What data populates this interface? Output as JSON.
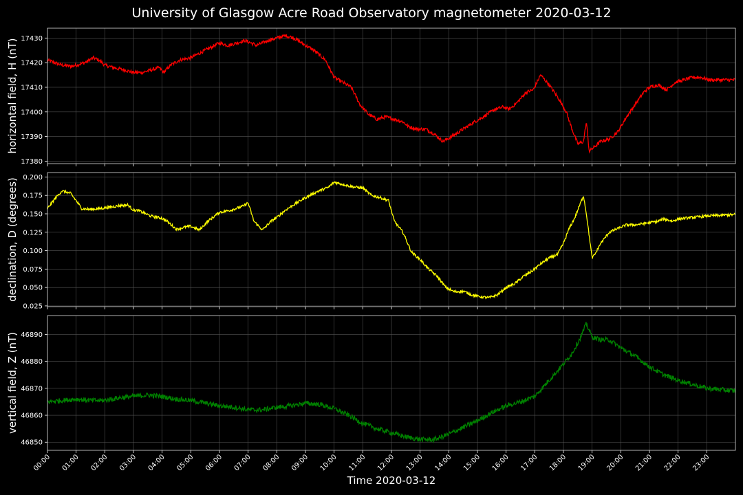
{
  "title": "University of Glasgow Acre Road Observatory magnetometer 2020-03-12",
  "xlabel": "Time 2020-03-12",
  "chart_data": [
    {
      "type": "line",
      "ylabel": "horizontal field, H (nT)",
      "color": "#ff0000",
      "ylim": [
        17379,
        17434
      ],
      "yticks": [
        17380,
        17390,
        17400,
        17410,
        17420,
        17430
      ],
      "xlim": [
        0,
        24
      ],
      "grid": true,
      "noise": 0.7,
      "series": [
        {
          "name": "",
          "x": [
            0.0,
            0.5,
            0.85,
            1.0,
            1.3,
            1.6,
            1.8,
            2.0,
            2.3,
            2.7,
            3.0,
            3.3,
            3.6,
            3.9,
            4.05,
            4.3,
            4.6,
            5.0,
            5.5,
            6.0,
            6.3,
            6.6,
            6.9,
            7.3,
            7.7,
            8.0,
            8.3,
            8.6,
            9.0,
            9.3,
            9.7,
            10.0,
            10.3,
            10.6,
            10.9,
            11.2,
            11.5,
            11.8,
            12.1,
            12.4,
            12.6,
            12.9,
            13.2,
            13.5,
            13.8,
            14.1,
            14.5,
            14.9,
            15.2,
            15.6,
            15.9,
            16.1,
            16.4,
            16.7,
            16.95,
            17.2,
            17.5,
            17.8,
            18.1,
            18.3,
            18.5,
            18.7,
            18.8,
            18.9,
            19.1,
            19.3,
            19.6,
            19.9,
            20.2,
            20.5,
            20.8,
            21.0,
            21.3,
            21.6,
            21.9,
            22.2,
            22.5,
            22.8,
            23.1,
            23.4,
            23.7,
            24.0
          ],
          "y": [
            17421,
            17419,
            17418.5,
            17419,
            17420,
            17422,
            17421,
            17419,
            17418,
            17417,
            17416,
            17416,
            17417,
            17418,
            17416,
            17419,
            17421,
            17422,
            17425,
            17428,
            17427,
            17428,
            17429,
            17427,
            17429,
            17430,
            17431,
            17430,
            17427,
            17425,
            17421,
            17414,
            17412,
            17410,
            17403,
            17399,
            17397,
            17398,
            17397,
            17396,
            17394,
            17393,
            17393,
            17391,
            17388,
            17390,
            17393,
            17396,
            17398,
            17401,
            17402,
            17401,
            17404,
            17408,
            17409,
            17415,
            17411,
            17406,
            17400,
            17393,
            17387,
            17388,
            17396,
            17384,
            17386,
            17388,
            17389,
            17392,
            17398,
            17403,
            17408,
            17410,
            17411,
            17409,
            17412,
            17413,
            17414,
            17414,
            17413,
            17413,
            17413,
            17413
          ]
        }
      ]
    },
    {
      "type": "line",
      "ylabel": "declination, D (degrees)",
      "color": "#ffff00",
      "ylim": [
        0.024,
        0.206
      ],
      "yticks": [
        0.025,
        0.05,
        0.075,
        0.1,
        0.125,
        0.15,
        0.175,
        0.2
      ],
      "xlim": [
        0,
        24
      ],
      "grid": true,
      "noise": 0.0018,
      "series": [
        {
          "name": "",
          "x": [
            0.0,
            0.25,
            0.5,
            0.8,
            1.0,
            1.2,
            1.5,
            1.8,
            2.0,
            2.5,
            2.8,
            3.0,
            3.2,
            3.6,
            4.0,
            4.2,
            4.5,
            4.8,
            5.0,
            5.3,
            5.6,
            6.0,
            6.4,
            6.8,
            7.0,
            7.2,
            7.5,
            7.8,
            8.0,
            8.3,
            8.7,
            9.0,
            9.4,
            9.8,
            10.0,
            10.3,
            10.6,
            11.0,
            11.3,
            11.6,
            11.9,
            12.1,
            12.4,
            12.7,
            13.0,
            13.3,
            13.6,
            13.9,
            14.2,
            14.5,
            14.8,
            15.0,
            15.4,
            15.7,
            16.0,
            16.3,
            16.6,
            16.9,
            17.2,
            17.5,
            17.8,
            18.0,
            18.2,
            18.4,
            18.6,
            18.7,
            18.8,
            18.9,
            19.0,
            19.1,
            19.3,
            19.6,
            19.9,
            20.2,
            20.5,
            21.0,
            21.3,
            21.5,
            21.8,
            22.0,
            22.5,
            23.0,
            23.5,
            24.0
          ],
          "y": [
            0.157,
            0.17,
            0.181,
            0.178,
            0.168,
            0.157,
            0.156,
            0.157,
            0.158,
            0.161,
            0.162,
            0.155,
            0.154,
            0.147,
            0.144,
            0.139,
            0.129,
            0.132,
            0.133,
            0.128,
            0.14,
            0.152,
            0.155,
            0.16,
            0.165,
            0.14,
            0.128,
            0.14,
            0.145,
            0.155,
            0.165,
            0.172,
            0.18,
            0.186,
            0.193,
            0.19,
            0.187,
            0.185,
            0.175,
            0.172,
            0.168,
            0.14,
            0.125,
            0.098,
            0.088,
            0.075,
            0.065,
            0.05,
            0.044,
            0.045,
            0.04,
            0.038,
            0.036,
            0.04,
            0.05,
            0.055,
            0.065,
            0.072,
            0.082,
            0.09,
            0.095,
            0.11,
            0.13,
            0.145,
            0.165,
            0.175,
            0.15,
            0.12,
            0.09,
            0.095,
            0.11,
            0.125,
            0.13,
            0.135,
            0.135,
            0.138,
            0.14,
            0.143,
            0.14,
            0.143,
            0.145,
            0.147,
            0.148,
            0.149
          ]
        }
      ]
    },
    {
      "type": "line",
      "ylabel": "vertical field, Z (nT)",
      "color": "#008000",
      "ylim": [
        46847,
        46897
      ],
      "yticks": [
        46850,
        46860,
        46870,
        46880,
        46890
      ],
      "xlim": [
        0,
        24
      ],
      "grid": true,
      "noise": 0.9,
      "series": [
        {
          "name": "",
          "x": [
            0.0,
            0.5,
            1.0,
            1.5,
            2.0,
            2.5,
            3.0,
            3.5,
            4.0,
            4.5,
            5.0,
            5.5,
            6.0,
            6.5,
            7.0,
            7.5,
            8.0,
            8.5,
            9.0,
            9.5,
            10.0,
            10.5,
            11.0,
            11.5,
            12.0,
            12.5,
            13.0,
            13.5,
            14.0,
            14.5,
            15.0,
            15.5,
            16.0,
            16.5,
            17.0,
            17.5,
            18.0,
            18.3,
            18.6,
            18.8,
            19.0,
            19.3,
            19.6,
            20.0,
            20.5,
            21.0,
            21.5,
            22.0,
            22.5,
            23.0,
            23.5,
            24.0
          ],
          "y": [
            46865,
            46865.5,
            46866,
            46865.5,
            46865.5,
            46866.5,
            46867,
            46867.5,
            46867,
            46866,
            46865.5,
            46864.5,
            46863.5,
            46863,
            46862,
            46862,
            46863,
            46863.5,
            46864.5,
            46864,
            46862.5,
            46860,
            46857,
            46855,
            46853.5,
            46852,
            46851,
            46851,
            46853,
            46855.5,
            46858,
            46861,
            46863.5,
            46865,
            46867,
            46873,
            46879,
            46883,
            46889,
            46894,
            46889,
            46888,
            46888,
            46885,
            46882,
            46878,
            46875,
            46873,
            46871.5,
            46870,
            46869.5,
            46869
          ]
        }
      ]
    }
  ],
  "xticks": [
    "00:00",
    "01:00",
    "02:00",
    "03:00",
    "04:00",
    "05:00",
    "06:00",
    "07:00",
    "08:00",
    "09:00",
    "10:00",
    "11:00",
    "12:00",
    "13:00",
    "14:00",
    "15:00",
    "16:00",
    "17:00",
    "18:00",
    "19:00",
    "20:00",
    "21:00",
    "22:00",
    "23:00"
  ]
}
